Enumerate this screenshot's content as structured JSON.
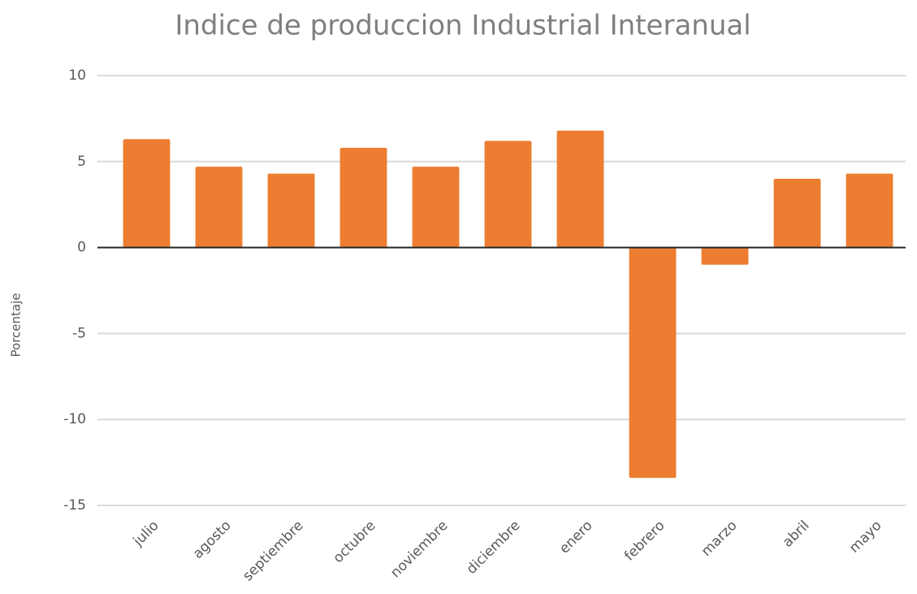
{
  "chart_data": {
    "type": "bar",
    "title": "Indice de produccion Industrial Interanual",
    "y_label": "Porcentaje",
    "categories": [
      "julio",
      "agosto",
      "septiembre",
      "octubre",
      "noviembre",
      "diciembre",
      "enero",
      "febrero",
      "marzo",
      "abril",
      "mayo"
    ],
    "values": [
      6.3,
      4.7,
      4.3,
      5.8,
      4.7,
      6.2,
      6.8,
      -13.4,
      -1.0,
      4.0,
      4.3
    ],
    "color": "#ed7d31",
    "ylim": [
      -15,
      10
    ],
    "yticks": [
      -15,
      -10,
      -5,
      0,
      5,
      10
    ],
    "grid": true
  }
}
